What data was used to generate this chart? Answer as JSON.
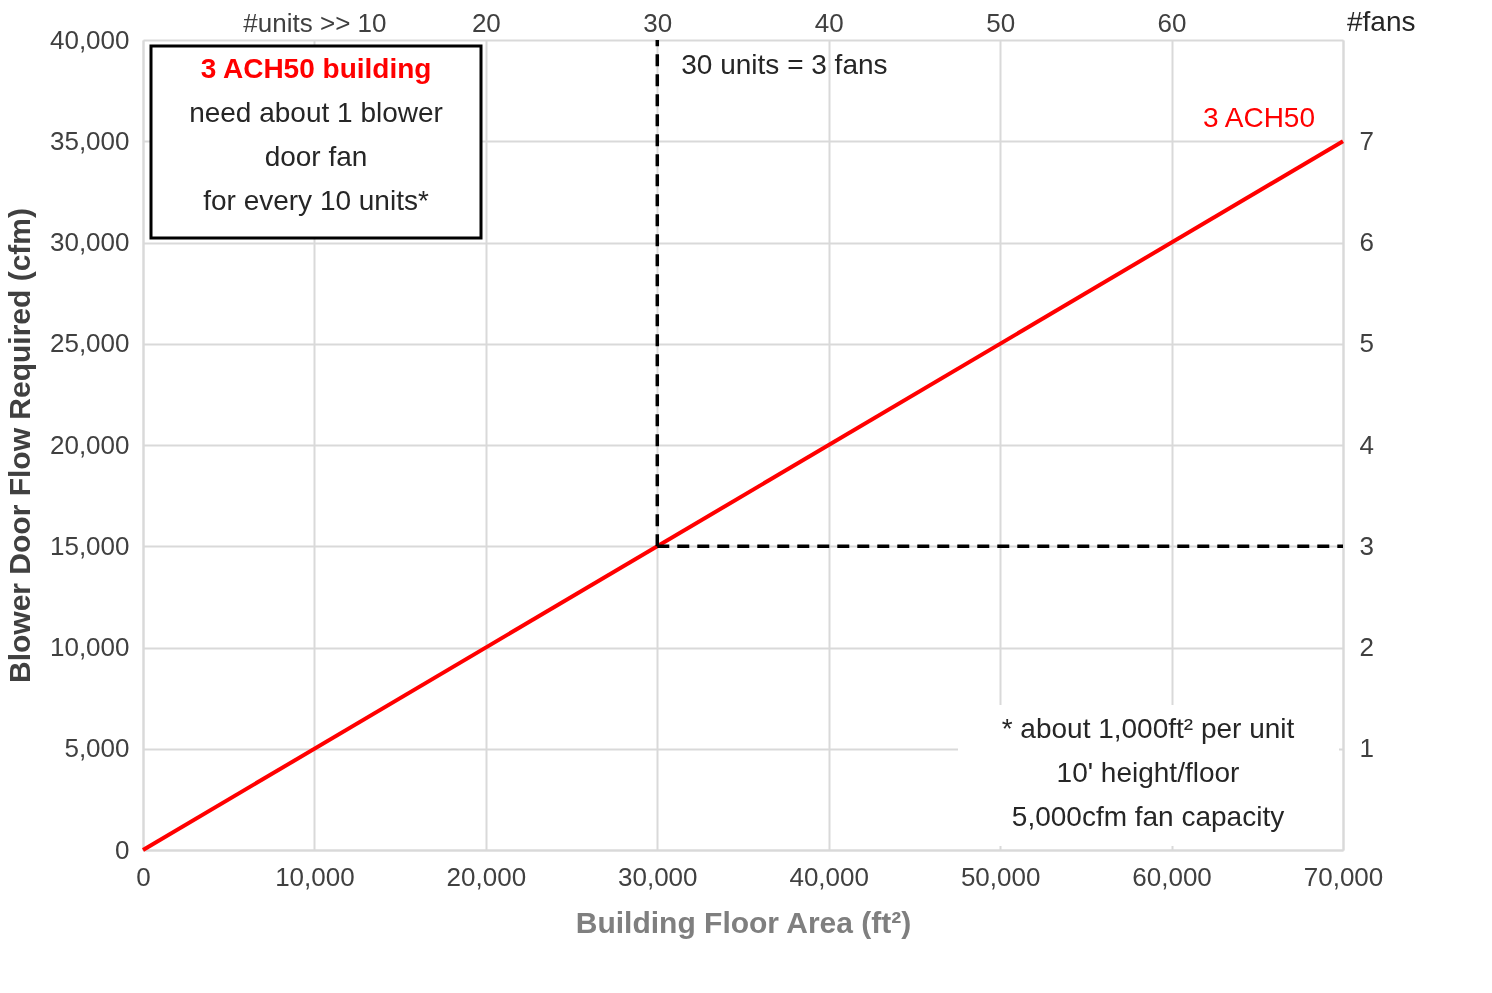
{
  "chart_data": {
    "type": "line",
    "xlabel": "Building Floor Area (ft²)",
    "ylabel": "Blower Door Flow Required (cfm)",
    "y2label": "#fans",
    "xlim": [
      0,
      70000
    ],
    "xticks": [
      0,
      {
        "value": 10000,
        "label": "10,000"
      },
      {
        "value": 20000,
        "label": "20,000"
      },
      {
        "value": 30000,
        "label": "30,000"
      },
      {
        "value": 40000,
        "label": "40,000"
      },
      {
        "value": 50000,
        "label": "50,000"
      },
      {
        "value": 60000,
        "label": "60,000"
      },
      {
        "value": 70000,
        "label": "70,000"
      }
    ],
    "ylim": [
      0,
      40000
    ],
    "yticks": [
      0,
      {
        "value": 5000,
        "label": "5,000"
      },
      {
        "value": 10000,
        "label": "10,000"
      },
      {
        "value": 15000,
        "label": "15,000"
      },
      {
        "value": 20000,
        "label": "20,000"
      },
      {
        "value": 25000,
        "label": "25,000"
      },
      {
        "value": 30000,
        "label": "30,000"
      },
      {
        "value": 35000,
        "label": "35,000"
      },
      {
        "value": 40000,
        "label": "40,000"
      }
    ],
    "x2lim": [
      0,
      70
    ],
    "x2ticks": [
      {
        "value": 10,
        "label": "#units >> 10"
      },
      20,
      30,
      40,
      50,
      60
    ],
    "y2lim": [
      0,
      8
    ],
    "y2ticks": [
      1,
      2,
      3,
      4,
      5,
      6,
      7
    ],
    "grid": true,
    "series": [
      {
        "name": "3 ACH50",
        "color": "#ff0000",
        "x": [
          0,
          70000
        ],
        "values": [
          0,
          35000
        ]
      },
      {
        "color": "#000000",
        "line_style": "dashed",
        "x": [
          30000,
          30000
        ],
        "values": [
          15000,
          40000
        ]
      },
      {
        "color": "#000000",
        "line_style": "dashed",
        "x": [
          30000,
          70000
        ],
        "values": [
          15000,
          15000
        ]
      }
    ],
    "annotations": [
      "3 ACH50 building",
      "need about 1 blower\ndoor fan\nfor every 10 units*",
      {
        "text": "30 units = 3 fans",
        "x": 30000,
        "y": 40000
      },
      "* about 1,000ft² per unit\n10' height/floor\n5,000cfm fan capacity"
    ]
  }
}
